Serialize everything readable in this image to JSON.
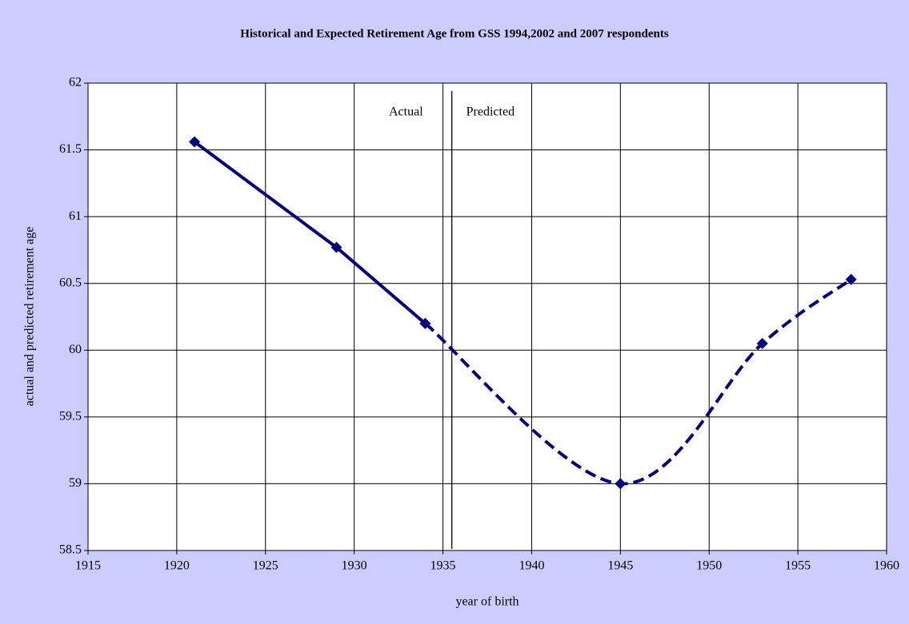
{
  "chart_data": {
    "type": "line",
    "title": "Historical and Expected Retirement Age from GSS 1994,2002 and 2007 respondents",
    "xlabel": "year of birth",
    "ylabel": "actual and predicted retirement age",
    "series": [
      {
        "x": [
          1921,
          1929,
          1934
        ],
        "values": [
          61.56,
          60.77,
          60.2
        ],
        "color": "#000080",
        "dashed": false,
        "smooth": false
      },
      {
        "x": [
          1934,
          1945,
          1953,
          1958
        ],
        "values": [
          60.2,
          59.0,
          60.05,
          60.53
        ],
        "color": "#000080",
        "dashed": true,
        "smooth": true
      }
    ],
    "divider": {
      "x": 1935.5,
      "left_label": "Actual",
      "right_label": "Predicted"
    },
    "xlim": [
      1915,
      1960
    ],
    "xticks": [
      1915,
      1920,
      1925,
      1930,
      1935,
      1940,
      1945,
      1950,
      1955,
      1960
    ],
    "ylim": [
      58.5,
      62
    ],
    "yticks": [
      58.5,
      59,
      59.5,
      60,
      60.5,
      61,
      61.5,
      62
    ],
    "grid": true
  }
}
